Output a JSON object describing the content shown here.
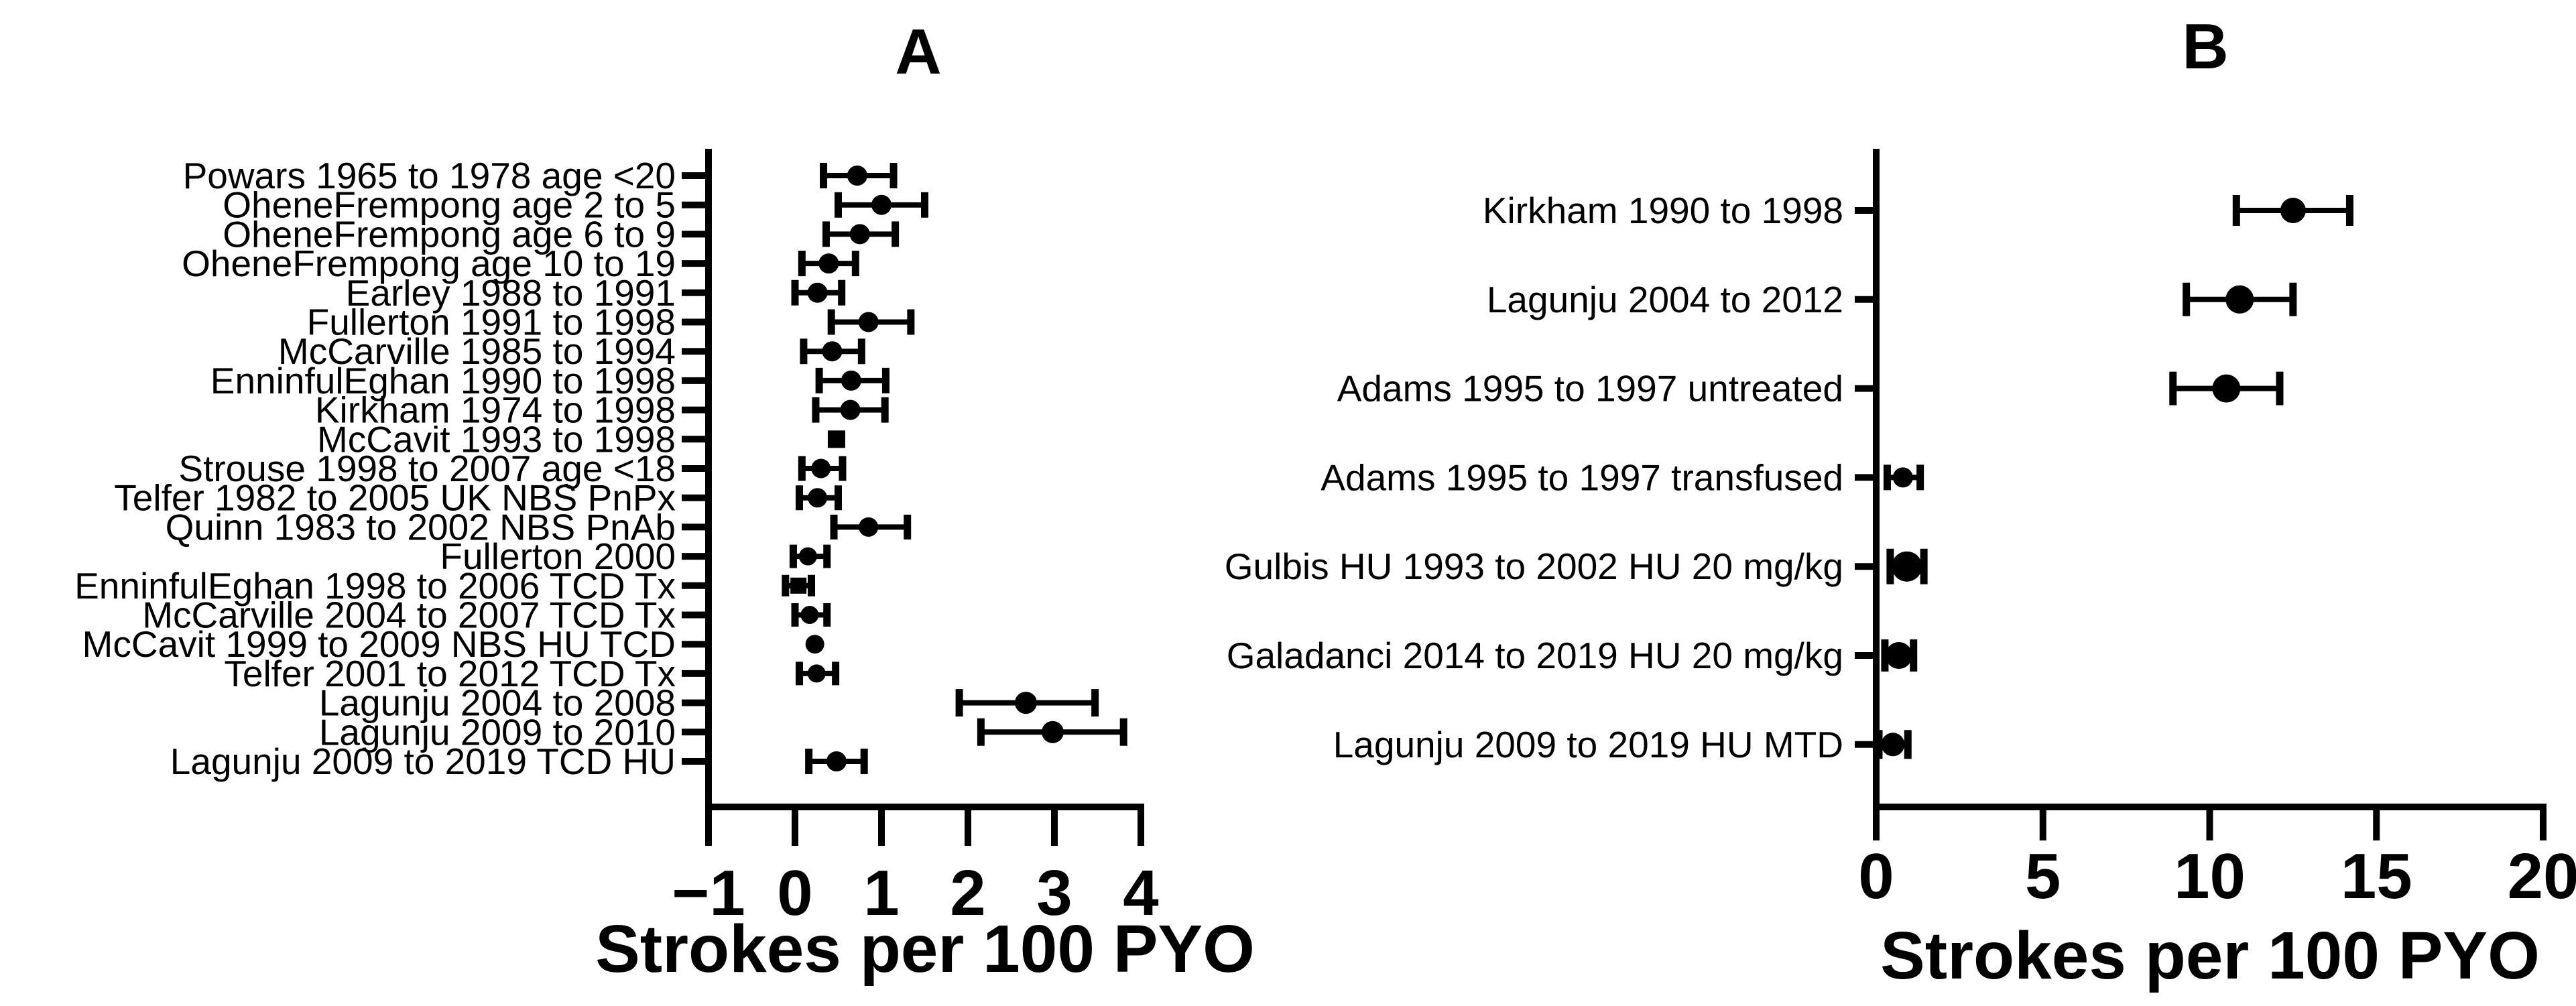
{
  "page": {
    "background_color": "#ffffff",
    "ink_color": "#000000"
  },
  "chart_data": [
    {
      "type": "scatter",
      "variant": "horizontal-forest-dot-plot-with-ci",
      "panel_label": "A",
      "xlabel": "Strokes per 100 PYO",
      "xlim": [
        -1,
        4
      ],
      "xticks": [
        -1,
        0,
        1,
        2,
        3,
        4
      ],
      "grid": false,
      "legend": "none",
      "rows": [
        {
          "label": "Powars 1965 to 1978 age <20",
          "value": 0.72,
          "ci_low": 0.33,
          "ci_high": 1.14,
          "marker": "circle",
          "marker_px": 30
        },
        {
          "label": "OheneFrempong age 2 to 5",
          "value": 1.0,
          "ci_low": 0.5,
          "ci_high": 1.5,
          "marker": "circle",
          "marker_px": 30
        },
        {
          "label": "OheneFrempong age 6 to 9",
          "value": 0.75,
          "ci_low": 0.36,
          "ci_high": 1.16,
          "marker": "circle",
          "marker_px": 30
        },
        {
          "label": "OheneFrempong age 10 to 19",
          "value": 0.39,
          "ci_low": 0.08,
          "ci_high": 0.7,
          "marker": "circle",
          "marker_px": 30
        },
        {
          "label": "Earley 1988 to 1991",
          "value": 0.26,
          "ci_low": 0.0,
          "ci_high": 0.54,
          "marker": "circle",
          "marker_px": 30
        },
        {
          "label": "Fullerton 1991 to 1998",
          "value": 0.85,
          "ci_low": 0.42,
          "ci_high": 1.34,
          "marker": "circle",
          "marker_px": 30
        },
        {
          "label": "McCarville 1985 to 1994",
          "value": 0.43,
          "ci_low": 0.1,
          "ci_high": 0.77,
          "marker": "circle",
          "marker_px": 30
        },
        {
          "label": "EnninfulEghan 1990 to 1998",
          "value": 0.65,
          "ci_low": 0.28,
          "ci_high": 1.05,
          "marker": "circle",
          "marker_px": 30
        },
        {
          "label": "Kirkham 1974 to 1998",
          "value": 0.64,
          "ci_low": 0.24,
          "ci_high": 1.04,
          "marker": "circle",
          "marker_px": 30
        },
        {
          "label": "McCavit 1993 to 1998",
          "value": 0.48,
          "ci_low": 0.48,
          "ci_high": 0.48,
          "marker": "square",
          "marker_px": 26
        },
        {
          "label": "Strouse 1998 to 2007 age <18",
          "value": 0.3,
          "ci_low": 0.08,
          "ci_high": 0.55,
          "marker": "circle",
          "marker_px": 29
        },
        {
          "label": "Telfer 1982 to 2005 UK NBS PnPx",
          "value": 0.26,
          "ci_low": 0.05,
          "ci_high": 0.5,
          "marker": "circle",
          "marker_px": 29
        },
        {
          "label": "Quinn 1983 to 2002 NBS PnAb",
          "value": 0.85,
          "ci_low": 0.45,
          "ci_high": 1.3,
          "marker": "circle",
          "marker_px": 29
        },
        {
          "label": "Fullerton 2000",
          "value": 0.15,
          "ci_low": -0.02,
          "ci_high": 0.37,
          "marker": "circle",
          "marker_px": 27
        },
        {
          "label": "EnninfulEghan 1998 to 2006 TCD Tx",
          "value": 0.04,
          "ci_low": -0.11,
          "ci_high": 0.19,
          "marker": "square",
          "marker_px": 24
        },
        {
          "label": "McCarville 2004 to 2007 TCD Tx",
          "value": 0.17,
          "ci_low": 0.0,
          "ci_high": 0.37,
          "marker": "circle",
          "marker_px": 27
        },
        {
          "label": "McCavit 1999 to 2009 NBS HU TCD",
          "value": 0.23,
          "ci_low": 0.23,
          "ci_high": 0.23,
          "marker": "circle",
          "marker_px": 28
        },
        {
          "label": "Telfer 2001 to 2012 TCD Tx",
          "value": 0.25,
          "ci_low": 0.05,
          "ci_high": 0.47,
          "marker": "circle",
          "marker_px": 27
        },
        {
          "label": "Lagunju 2004 to 2008",
          "value": 2.67,
          "ci_low": 1.9,
          "ci_high": 3.47,
          "marker": "circle",
          "marker_px": 33
        },
        {
          "label": "Lagunju 2009 to 2010",
          "value": 2.98,
          "ci_low": 2.15,
          "ci_high": 3.8,
          "marker": "circle",
          "marker_px": 33
        },
        {
          "label": "Lagunju 2009 to 2019 TCD HU",
          "value": 0.48,
          "ci_low": 0.16,
          "ci_high": 0.8,
          "marker": "circle",
          "marker_px": 30
        }
      ]
    },
    {
      "type": "scatter",
      "variant": "horizontal-forest-dot-plot-with-ci",
      "panel_label": "B",
      "xlabel": "Strokes per 100 PYO",
      "xlim": [
        0,
        20
      ],
      "xticks": [
        0,
        5,
        10,
        15,
        20
      ],
      "grid": false,
      "legend": "none",
      "rows": [
        {
          "label": "Kirkham 1990 to 1998",
          "value": 12.5,
          "ci_low": 10.8,
          "ci_high": 14.2,
          "marker": "circle",
          "marker_px": 38
        },
        {
          "label": "Lagunju 2004 to 2012",
          "value": 10.9,
          "ci_low": 9.3,
          "ci_high": 12.5,
          "marker": "circle",
          "marker_px": 42
        },
        {
          "label": "Adams 1995 to 1997 untreated",
          "value": 10.5,
          "ci_low": 8.9,
          "ci_high": 12.1,
          "marker": "circle",
          "marker_px": 42
        },
        {
          "label": "Adams 1995 to 1997 transfused",
          "value": 0.8,
          "ci_low": 0.33,
          "ci_high": 1.32,
          "marker": "circle",
          "marker_px": 30
        },
        {
          "label": "Gulbis HU 1993 to 2002 HU 20 mg/kg",
          "value": 0.92,
          "ci_low": 0.42,
          "ci_high": 1.43,
          "marker": "circle",
          "marker_px": 45
        },
        {
          "label": "Galadanci 2014 to 2019 HU 20 mg/kg",
          "value": 0.68,
          "ci_low": 0.26,
          "ci_high": 1.12,
          "marker": "circle",
          "marker_px": 40
        },
        {
          "label": "Lagunju 2009 to 2019 HU MTD",
          "value": 0.5,
          "ci_low": 0.08,
          "ci_high": 0.95,
          "marker": "circle",
          "marker_px": 35
        }
      ]
    }
  ]
}
